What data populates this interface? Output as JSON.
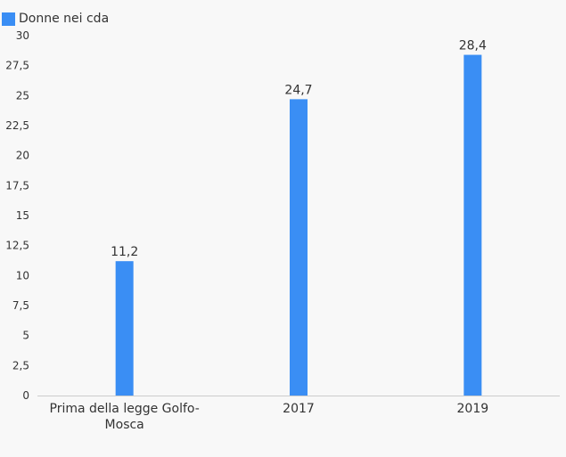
{
  "chart_data": {
    "type": "bar",
    "categories": [
      "Prima della legge Golfo-Mosca",
      "2017",
      "2019"
    ],
    "category_lines": [
      [
        "Prima della legge Golfo-",
        "Mosca"
      ],
      [
        "2017"
      ],
      [
        "2019"
      ]
    ],
    "series": [
      {
        "name": "Donne nei cda",
        "values": [
          11.2,
          24.7,
          28.4
        ],
        "color": "#3a8ef4"
      }
    ],
    "data_labels": [
      "11,2",
      "24,7",
      "28,4"
    ],
    "ylim": [
      0,
      30
    ],
    "y_ticks": [
      0,
      2.5,
      5,
      7.5,
      10,
      12.5,
      15,
      17.5,
      20,
      22.5,
      25,
      27.5,
      30
    ],
    "y_tick_labels": [
      "0",
      "2,5",
      "5",
      "7,5",
      "10",
      "12,5",
      "15",
      "17,5",
      "20",
      "22,5",
      "25",
      "27,5",
      "30"
    ],
    "grid": false,
    "legend_position": "top-left"
  },
  "legend": {
    "label": "Donne nei cda",
    "color": "#3a8ef4"
  }
}
